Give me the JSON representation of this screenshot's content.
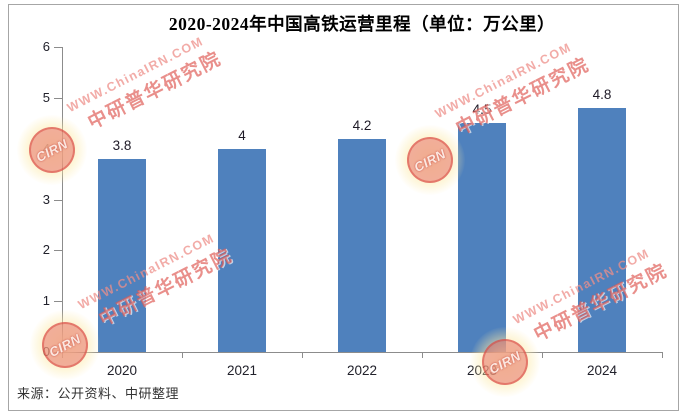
{
  "chart_data": {
    "type": "bar",
    "title": "2020-2024年中国高铁运营里程（单位：万公里）",
    "categories": [
      "2020",
      "2021",
      "2022",
      "2023",
      "2024"
    ],
    "values": [
      3.8,
      4,
      4.2,
      4.5,
      4.8
    ],
    "value_labels": [
      "3.8",
      "4",
      "4.2",
      "4.5",
      "4.8"
    ],
    "xlabel": "",
    "ylabel": "",
    "ylim": [
      0,
      6
    ],
    "ytick_step": 1,
    "ytick_labels": [
      "0",
      "1",
      "2",
      "3",
      "4",
      "5",
      "6"
    ],
    "grid": false,
    "legend_position": "none",
    "bar_color": "#4f81bd",
    "axis_color": "#8c8c8c",
    "source_note": "来源：公开资料、中研整理"
  },
  "watermark": {
    "stamp_text": "CIRN",
    "line1": "WWW.ChinaIRN.COM",
    "line2": "中研普华研究院"
  }
}
